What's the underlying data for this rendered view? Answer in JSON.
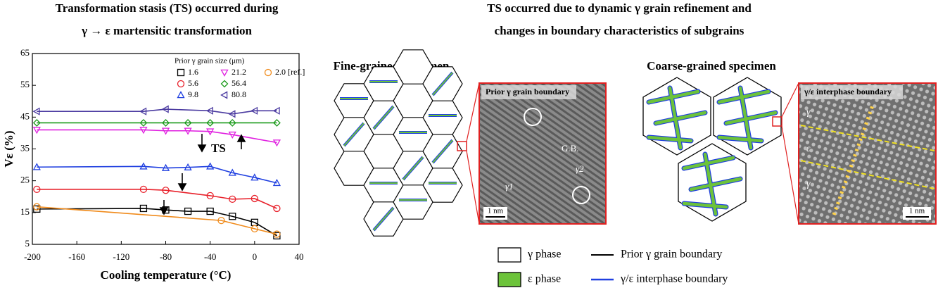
{
  "chart_data": {
    "type": "line",
    "title": [
      "Transformation stasis (TS) occurred during",
      "γ → ε martensitic transformation"
    ],
    "xlabel": "Cooling temperature (°C)",
    "ylabel": "Vε (%)",
    "xlim": [
      -200,
      40
    ],
    "xticks": [
      -200,
      -160,
      -120,
      -80,
      -40,
      0,
      40
    ],
    "ylim": [
      5,
      65
    ],
    "yticks": [
      5,
      15,
      25,
      35,
      45,
      55,
      65
    ],
    "legend_title": "Prior γ grain size (μm)",
    "annotations": [
      "TS"
    ],
    "series": [
      {
        "name": "1.6",
        "color": "#000000",
        "marker": "square",
        "x": [
          -196,
          -100,
          -80,
          -60,
          -40,
          -20,
          0,
          20
        ],
        "values": [
          16.1,
          16.3,
          15.8,
          15.4,
          15.4,
          13.8,
          11.9,
          7.7
        ]
      },
      {
        "name": "5.6",
        "color": "#e8202a",
        "marker": "circle",
        "x": [
          -196,
          -100,
          -80,
          -40,
          -20,
          0,
          20
        ],
        "values": [
          22.3,
          22.3,
          22.0,
          20.3,
          19.2,
          19.4,
          16.3
        ]
      },
      {
        "name": "9.8",
        "color": "#1f3fe0",
        "marker": "triangle-up",
        "x": [
          -196,
          -100,
          -80,
          -60,
          -40,
          -20,
          0,
          20
        ],
        "values": [
          29.3,
          29.5,
          29.0,
          29.2,
          29.5,
          27.5,
          26.0,
          24.3
        ]
      },
      {
        "name": "21.2",
        "color": "#e020e0",
        "marker": "triangle-down",
        "x": [
          -196,
          -100,
          -80,
          -60,
          -40,
          -20,
          20
        ],
        "values": [
          41.0,
          41.0,
          40.7,
          40.7,
          40.5,
          39.5,
          37.0
        ]
      },
      {
        "name": "56.4",
        "color": "#1a9a1a",
        "marker": "diamond",
        "x": [
          -196,
          -100,
          -80,
          -60,
          -40,
          -20,
          20
        ],
        "values": [
          43.2,
          43.2,
          43.2,
          43.2,
          43.2,
          43.2,
          43.2
        ]
      },
      {
        "name": "80.8",
        "color": "#4a3aa0",
        "marker": "triangle-left",
        "x": [
          -196,
          -100,
          -80,
          -40,
          -20,
          0,
          20
        ],
        "values": [
          46.8,
          46.8,
          47.5,
          47.0,
          46.0,
          47.0,
          47.0
        ]
      },
      {
        "name": "2.0 [ref.]",
        "color": "#f08a1a",
        "marker": "circle",
        "x": [
          -196,
          -30,
          0,
          20
        ],
        "values": [
          16.8,
          12.5,
          9.9,
          8.2
        ]
      }
    ]
  },
  "panels": {
    "title": [
      "TS occurred due to dynamic γ grain refinement and",
      "changes in boundary characteristics of subgrains"
    ],
    "fine": {
      "title": "Fine-grained specimen",
      "image_label": "Prior γ grain boundary",
      "gb": "G.B.",
      "g1": "γ1",
      "g2": "γ2",
      "scale": "1 nm"
    },
    "coarse": {
      "title": "Coarse-grained specimen",
      "image_label": "γ/ε interphase boundary",
      "phases": [
        "γ",
        "ε",
        "γ"
      ],
      "scale": "1 nm"
    },
    "legend": [
      "γ phase",
      "ε phase",
      "Prior γ grain boundary",
      "γ/ε interphase boundary"
    ]
  }
}
